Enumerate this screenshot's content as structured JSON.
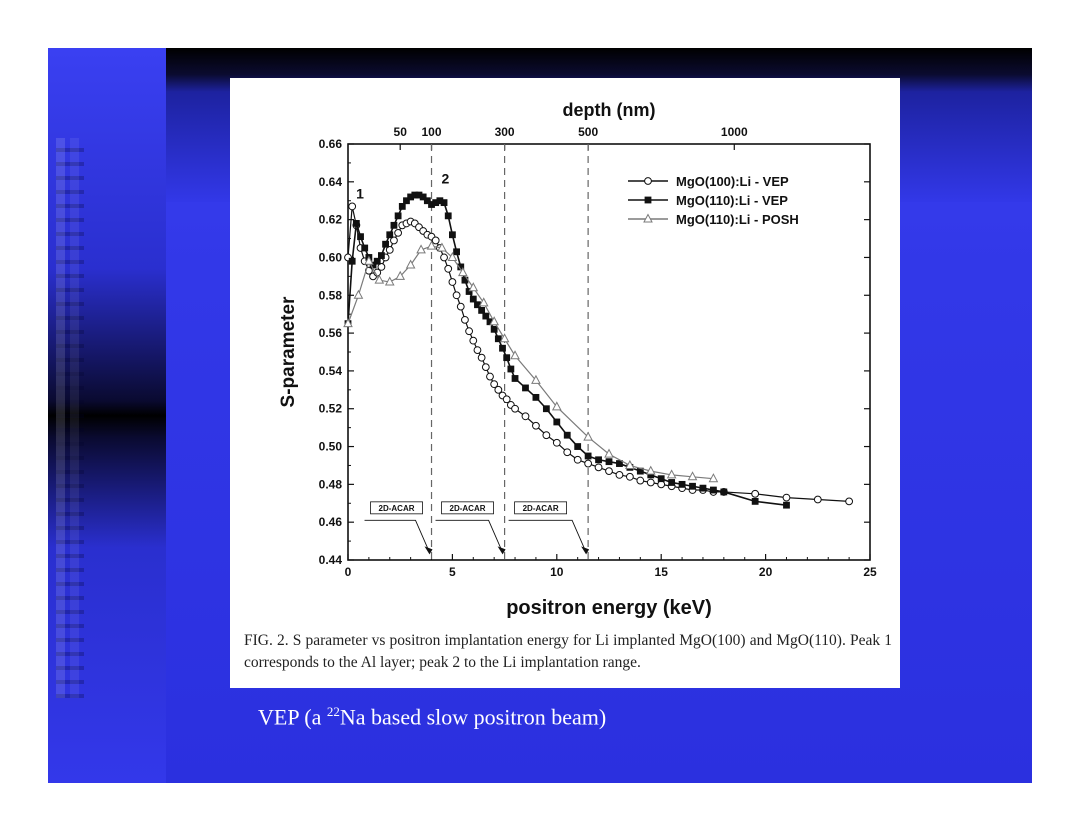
{
  "subtitle": {
    "before": "VEP (a ",
    "sup": "22",
    "after": "Na based slow positron beam)"
  },
  "caption": "FIG. 2. S parameter vs positron implantation energy for Li implanted MgO(100) and MgO(110). Peak 1 corresponds to the Al layer; peak 2 to the Li implantation range.",
  "chart_data": {
    "type": "line",
    "xlabel": "positron energy (keV)",
    "ylabel": "S-parameter",
    "top_axis_label": "depth (nm)",
    "xlim": [
      0,
      25
    ],
    "ylim": [
      0.44,
      0.66
    ],
    "x_ticks": [
      "0",
      "5",
      "10",
      "15",
      "20",
      "25"
    ],
    "y_ticks": [
      "0.44",
      "0.46",
      "0.48",
      "0.50",
      "0.52",
      "0.54",
      "0.56",
      "0.58",
      "0.60",
      "0.62",
      "0.64",
      "0.66"
    ],
    "top_ticks": [
      {
        "label": "50",
        "energy": 2.5
      },
      {
        "label": "100",
        "energy": 4.0
      },
      {
        "label": "300",
        "energy": 7.5
      },
      {
        "label": "500",
        "energy": 11.5
      },
      {
        "label": "1000",
        "energy": 18.5
      }
    ],
    "vlines": [
      4.0,
      7.5,
      11.5
    ],
    "peaks": [
      {
        "label": "1",
        "x": 0.2,
        "y": 0.63
      },
      {
        "label": "2",
        "x": 4.0,
        "y": 0.638
      }
    ],
    "acar_regions": [
      {
        "label": "2D-ACAR",
        "x_start": 0.6,
        "x_end": 4.0
      },
      {
        "label": "2D-ACAR",
        "x_start": 4.0,
        "x_end": 7.5
      },
      {
        "label": "2D-ACAR",
        "x_start": 7.5,
        "x_end": 11.5
      }
    ],
    "legend_position": "top-right",
    "series": [
      {
        "name": "MgO(100):Li - VEP",
        "marker": "open-circle",
        "color": "#111111",
        "x": [
          0,
          0.2,
          0.4,
          0.6,
          0.8,
          1.0,
          1.2,
          1.4,
          1.6,
          1.8,
          2.0,
          2.2,
          2.4,
          2.6,
          2.8,
          3.0,
          3.2,
          3.4,
          3.6,
          3.8,
          4.0,
          4.2,
          4.4,
          4.6,
          4.8,
          5.0,
          5.2,
          5.4,
          5.6,
          5.8,
          6.0,
          6.2,
          6.4,
          6.6,
          6.8,
          7.0,
          7.2,
          7.4,
          7.6,
          7.8,
          8.0,
          8.5,
          9.0,
          9.5,
          10.0,
          10.5,
          11.0,
          11.5,
          12.0,
          12.5,
          13.0,
          13.5,
          14.0,
          14.5,
          15.0,
          15.5,
          16.0,
          16.5,
          17.0,
          17.5,
          18.0,
          19.5,
          21.0,
          22.5,
          24.0
        ],
        "y": [
          0.6,
          0.627,
          0.617,
          0.605,
          0.598,
          0.593,
          0.59,
          0.592,
          0.595,
          0.6,
          0.604,
          0.609,
          0.613,
          0.617,
          0.618,
          0.619,
          0.618,
          0.616,
          0.614,
          0.612,
          0.611,
          0.609,
          0.605,
          0.6,
          0.594,
          0.587,
          0.58,
          0.574,
          0.567,
          0.561,
          0.556,
          0.551,
          0.547,
          0.542,
          0.537,
          0.533,
          0.53,
          0.527,
          0.525,
          0.522,
          0.52,
          0.516,
          0.511,
          0.506,
          0.502,
          0.497,
          0.493,
          0.491,
          0.489,
          0.487,
          0.485,
          0.484,
          0.482,
          0.481,
          0.48,
          0.479,
          0.478,
          0.477,
          0.477,
          0.476,
          0.476,
          0.475,
          0.473,
          0.472,
          0.471
        ]
      },
      {
        "name": "MgO(110):Li - VEP",
        "marker": "filled-square",
        "color": "#111111",
        "x": [
          0,
          0.2,
          0.4,
          0.6,
          0.8,
          1.0,
          1.2,
          1.4,
          1.6,
          1.8,
          2.0,
          2.2,
          2.4,
          2.6,
          2.8,
          3.0,
          3.2,
          3.4,
          3.6,
          3.8,
          4.0,
          4.2,
          4.4,
          4.6,
          4.8,
          5.0,
          5.2,
          5.4,
          5.6,
          5.8,
          6.0,
          6.2,
          6.4,
          6.6,
          6.8,
          7.0,
          7.2,
          7.4,
          7.6,
          7.8,
          8.0,
          8.5,
          9.0,
          9.5,
          10.0,
          10.5,
          11.0,
          11.5,
          12.0,
          12.5,
          13.0,
          13.5,
          14.0,
          14.5,
          15.0,
          15.5,
          16.0,
          16.5,
          17.0,
          17.5,
          18.0,
          19.5,
          21.0
        ],
        "y": [
          0.565,
          0.598,
          0.618,
          0.611,
          0.605,
          0.6,
          0.596,
          0.598,
          0.601,
          0.607,
          0.612,
          0.617,
          0.622,
          0.627,
          0.63,
          0.632,
          0.633,
          0.633,
          0.632,
          0.63,
          0.628,
          0.629,
          0.63,
          0.629,
          0.622,
          0.612,
          0.603,
          0.595,
          0.588,
          0.582,
          0.578,
          0.575,
          0.572,
          0.569,
          0.566,
          0.562,
          0.557,
          0.552,
          0.547,
          0.541,
          0.536,
          0.531,
          0.526,
          0.52,
          0.513,
          0.506,
          0.5,
          0.495,
          0.493,
          0.492,
          0.491,
          0.489,
          0.487,
          0.485,
          0.483,
          0.481,
          0.48,
          0.479,
          0.478,
          0.477,
          0.476,
          0.471,
          0.469
        ]
      },
      {
        "name": "MgO(110):Li - POSH",
        "marker": "open-triangle",
        "color": "#7a7a7a",
        "x": [
          0,
          0.5,
          1.0,
          1.5,
          2.0,
          2.5,
          3.0,
          3.5,
          4.0,
          4.5,
          5.0,
          5.5,
          6.0,
          6.5,
          7.0,
          7.5,
          8.0,
          9.0,
          10.0,
          11.5,
          12.5,
          13.5,
          14.5,
          15.5,
          16.5,
          17.5
        ],
        "y": [
          0.565,
          0.58,
          0.598,
          0.588,
          0.587,
          0.59,
          0.596,
          0.604,
          0.606,
          0.605,
          0.6,
          0.592,
          0.584,
          0.576,
          0.566,
          0.557,
          0.548,
          0.535,
          0.521,
          0.505,
          0.496,
          0.49,
          0.487,
          0.485,
          0.484,
          0.483
        ]
      }
    ]
  }
}
